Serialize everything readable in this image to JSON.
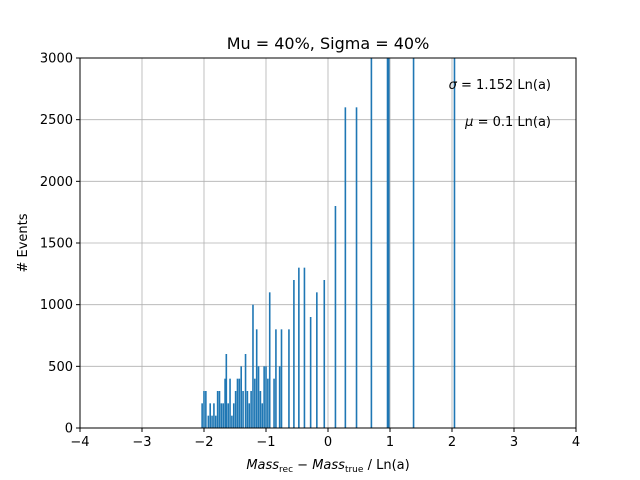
{
  "chart_data": {
    "type": "bar",
    "title": "Mu = 40%, Sigma = 40%",
    "xlabel_parts": {
      "m1": "Mass",
      "s1": "rec",
      "minus": " − ",
      "m2": "Mass",
      "s2": "true",
      "tail": " / Ln(a)"
    },
    "ylabel": "# Events",
    "xlim": [
      -4,
      4
    ],
    "ylim": [
      0,
      3000
    ],
    "xticks": [
      "−4",
      "−3",
      "−2",
      "−1",
      "0",
      "1",
      "2",
      "3",
      "4"
    ],
    "yticks": [
      "0",
      "500",
      "1000",
      "1500",
      "2000",
      "2500",
      "3000"
    ],
    "grid": true,
    "color": "#1f77b4",
    "annotations": [
      {
        "sym": "σ",
        "text": " = 1.152 Ln(a)"
      },
      {
        "sym": "μ",
        "text": " = 0.1 Ln(a)"
      }
    ],
    "bars": [
      {
        "x": -2.03,
        "y": 200
      },
      {
        "x": -2.0,
        "y": 300
      },
      {
        "x": -1.97,
        "y": 300
      },
      {
        "x": -1.93,
        "y": 100
      },
      {
        "x": -1.9,
        "y": 200
      },
      {
        "x": -1.87,
        "y": 100
      },
      {
        "x": -1.84,
        "y": 200
      },
      {
        "x": -1.81,
        "y": 100
      },
      {
        "x": -1.78,
        "y": 300
      },
      {
        "x": -1.75,
        "y": 300
      },
      {
        "x": -1.72,
        "y": 200
      },
      {
        "x": -1.69,
        "y": 200
      },
      {
        "x": -1.66,
        "y": 400
      },
      {
        "x": -1.64,
        "y": 600
      },
      {
        "x": -1.61,
        "y": 200
      },
      {
        "x": -1.58,
        "y": 400
      },
      {
        "x": -1.55,
        "y": 100
      },
      {
        "x": -1.52,
        "y": 200
      },
      {
        "x": -1.49,
        "y": 300
      },
      {
        "x": -1.46,
        "y": 400
      },
      {
        "x": -1.43,
        "y": 400
      },
      {
        "x": -1.4,
        "y": 500
      },
      {
        "x": -1.37,
        "y": 300
      },
      {
        "x": -1.33,
        "y": 600
      },
      {
        "x": -1.3,
        "y": 300
      },
      {
        "x": -1.27,
        "y": 200
      },
      {
        "x": -1.24,
        "y": 300
      },
      {
        "x": -1.21,
        "y": 1000
      },
      {
        "x": -1.18,
        "y": 400
      },
      {
        "x": -1.15,
        "y": 800
      },
      {
        "x": -1.12,
        "y": 500
      },
      {
        "x": -1.09,
        "y": 300
      },
      {
        "x": -1.06,
        "y": 200
      },
      {
        "x": -1.03,
        "y": 500
      },
      {
        "x": -1.0,
        "y": 500
      },
      {
        "x": -0.97,
        "y": 400
      },
      {
        "x": -0.94,
        "y": 1100
      },
      {
        "x": -0.87,
        "y": 400
      },
      {
        "x": -0.84,
        "y": 800
      },
      {
        "x": -0.78,
        "y": 500
      },
      {
        "x": -0.75,
        "y": 800
      },
      {
        "x": -0.63,
        "y": 800
      },
      {
        "x": -0.55,
        "y": 1200
      },
      {
        "x": -0.47,
        "y": 1300
      },
      {
        "x": -0.38,
        "y": 1300
      },
      {
        "x": -0.28,
        "y": 900
      },
      {
        "x": -0.18,
        "y": 1100
      },
      {
        "x": -0.06,
        "y": 1200
      },
      {
        "x": 0.12,
        "y": 1800
      },
      {
        "x": 0.28,
        "y": 2600
      },
      {
        "x": 0.46,
        "y": 2600
      },
      {
        "x": 0.7,
        "y": 3000
      },
      {
        "x": 0.96,
        "y": 3000
      },
      {
        "x": 0.98,
        "y": 3000
      },
      {
        "x": 1.38,
        "y": 3000
      },
      {
        "x": 2.04,
        "y": 3000
      }
    ]
  }
}
